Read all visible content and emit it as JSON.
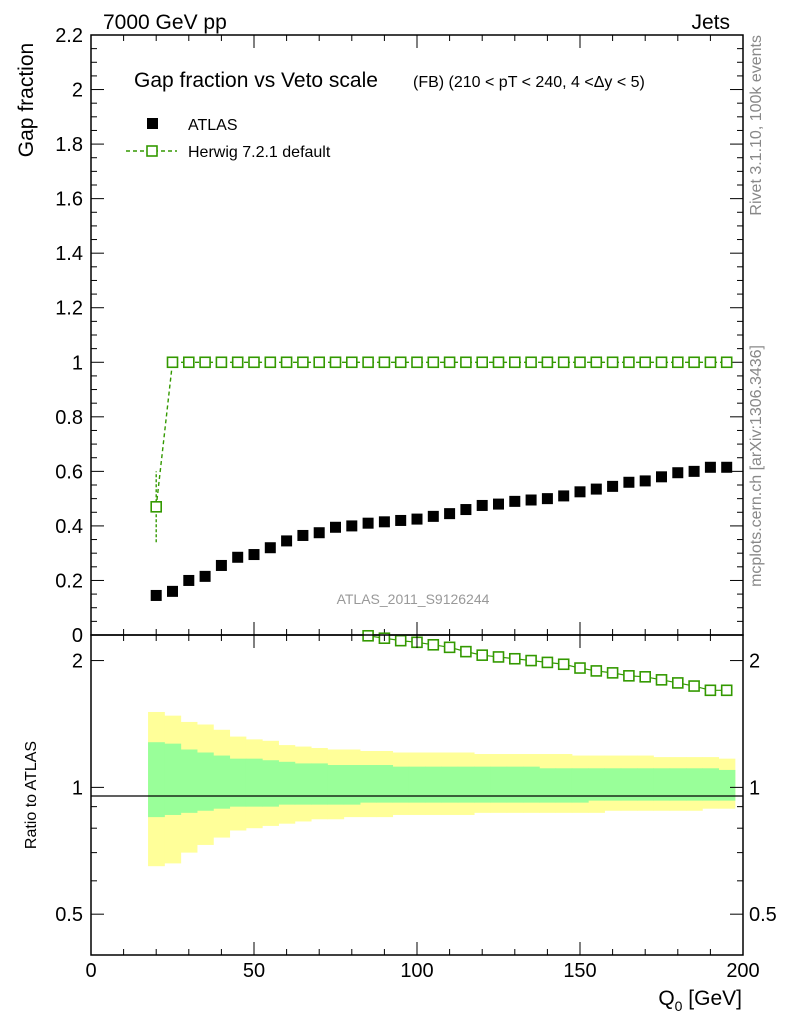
{
  "header": {
    "left": "7000 GeV pp",
    "right": "Jets"
  },
  "side": {
    "rivet": "Rivet 3.1.10,  100k events",
    "mcplots": "mcplots.cern.ch [arXiv:1306.3436]"
  },
  "chart_data": [
    {
      "type": "scatter",
      "title": "Gap fraction vs Veto scale",
      "subtitle": "(FB) (210 < pT < 240, 4 <Δy < 5)",
      "ylabel": "Gap fraction",
      "xlim": [
        0,
        200
      ],
      "ylim": [
        0,
        2.2
      ],
      "yticks": [
        "0",
        "0.2",
        "0.4",
        "0.6",
        "0.8",
        "1",
        "1.2",
        "1.4",
        "1.6",
        "1.8",
        "2",
        "2.2"
      ],
      "watermark": "ATLAS_2011_S9126244",
      "x": [
        20,
        25,
        30,
        35,
        40,
        45,
        50,
        55,
        60,
        65,
        70,
        75,
        80,
        85,
        90,
        95,
        100,
        105,
        110,
        115,
        120,
        125,
        130,
        135,
        140,
        145,
        150,
        155,
        160,
        165,
        170,
        175,
        180,
        185,
        190,
        195
      ],
      "series": [
        {
          "name": "ATLAS",
          "marker": "filled-square",
          "color": "#000000",
          "values": [
            0.145,
            0.16,
            0.2,
            0.215,
            0.255,
            0.285,
            0.295,
            0.32,
            0.345,
            0.365,
            0.375,
            0.395,
            0.4,
            0.41,
            0.415,
            0.42,
            0.425,
            0.435,
            0.445,
            0.46,
            0.475,
            0.48,
            0.49,
            0.495,
            0.5,
            0.51,
            0.525,
            0.535,
            0.545,
            0.56,
            0.565,
            0.58,
            0.595,
            0.6,
            0.615,
            0.615
          ]
        },
        {
          "name": "Herwig 7.2.1 default",
          "marker": "open-square",
          "line": "dashed",
          "color": "#339900",
          "values": [
            0.47,
            1,
            1,
            1,
            1,
            1,
            1,
            1,
            1,
            1,
            1,
            1,
            1,
            1,
            1,
            1,
            1,
            1,
            1,
            1,
            1,
            1,
            1,
            1,
            1,
            1,
            1,
            1,
            1,
            1,
            1,
            1,
            1,
            1,
            1,
            1
          ],
          "error_low": [
            0.34,
            null,
            null,
            null,
            null,
            null,
            null,
            null,
            null,
            null,
            null,
            null,
            null,
            null,
            null,
            null,
            null,
            null,
            null,
            null,
            null,
            null,
            null,
            null,
            null,
            null,
            null,
            null,
            null,
            null,
            null,
            null,
            null,
            null,
            null,
            null
          ],
          "error_high": [
            0.6,
            null,
            null,
            null,
            null,
            null,
            null,
            null,
            null,
            null,
            null,
            null,
            null,
            null,
            null,
            null,
            null,
            null,
            null,
            null,
            null,
            null,
            null,
            null,
            null,
            null,
            null,
            null,
            null,
            null,
            null,
            null,
            null,
            null,
            null,
            null
          ]
        }
      ]
    },
    {
      "type": "scatter",
      "title": "",
      "ylabel": "Ratio to ATLAS",
      "xlabel": "Q",
      "xlabel_sub": "0",
      "xlabel_unit": " [GeV]",
      "xlim": [
        0,
        200
      ],
      "ylim": [
        0.4,
        2.3
      ],
      "yscale": "log",
      "xticks": [
        "0",
        "50",
        "100",
        "150",
        "200"
      ],
      "yticks": [
        "0.5",
        "1",
        "2"
      ],
      "bands": {
        "edges": [
          17.5,
          22.5,
          27.5,
          32.5,
          37.5,
          42.5,
          47.5,
          52.5,
          57.5,
          62.5,
          67.5,
          72.5,
          77.5,
          82.5,
          87.5,
          92.5,
          97.5,
          102.5,
          107.5,
          112.5,
          117.5,
          122.5,
          127.5,
          132.5,
          137.5,
          142.5,
          147.5,
          152.5,
          157.5,
          162.5,
          167.5,
          172.5,
          177.5,
          182.5,
          187.5,
          192.5,
          197.5
        ],
        "yellow_high": [
          1.51,
          1.48,
          1.43,
          1.41,
          1.37,
          1.32,
          1.3,
          1.29,
          1.26,
          1.25,
          1.24,
          1.23,
          1.23,
          1.22,
          1.22,
          1.21,
          1.21,
          1.21,
          1.21,
          1.21,
          1.2,
          1.2,
          1.2,
          1.2,
          1.2,
          1.2,
          1.19,
          1.19,
          1.19,
          1.19,
          1.19,
          1.18,
          1.18,
          1.18,
          1.18,
          1.17
        ],
        "yellow_low": [
          0.65,
          0.66,
          0.7,
          0.73,
          0.76,
          0.79,
          0.8,
          0.81,
          0.82,
          0.83,
          0.84,
          0.84,
          0.85,
          0.85,
          0.85,
          0.86,
          0.86,
          0.86,
          0.86,
          0.86,
          0.87,
          0.87,
          0.87,
          0.87,
          0.87,
          0.87,
          0.87,
          0.87,
          0.88,
          0.88,
          0.88,
          0.88,
          0.88,
          0.88,
          0.89,
          0.89
        ],
        "green_high": [
          1.28,
          1.27,
          1.23,
          1.21,
          1.19,
          1.17,
          1.17,
          1.16,
          1.15,
          1.14,
          1.14,
          1.13,
          1.13,
          1.13,
          1.13,
          1.12,
          1.12,
          1.12,
          1.12,
          1.12,
          1.12,
          1.12,
          1.12,
          1.12,
          1.11,
          1.11,
          1.11,
          1.11,
          1.11,
          1.11,
          1.11,
          1.11,
          1.11,
          1.11,
          1.11,
          1.1
        ],
        "green_low": [
          0.85,
          0.86,
          0.87,
          0.88,
          0.89,
          0.9,
          0.9,
          0.9,
          0.91,
          0.91,
          0.91,
          0.91,
          0.91,
          0.92,
          0.92,
          0.92,
          0.92,
          0.92,
          0.92,
          0.92,
          0.92,
          0.92,
          0.92,
          0.92,
          0.92,
          0.92,
          0.92,
          0.93,
          0.93,
          0.93,
          0.93,
          0.93,
          0.93,
          0.93,
          0.93,
          0.93
        ]
      },
      "reference_line": 1,
      "series": [
        {
          "name": "Herwig 7.2.1 default / ATLAS",
          "marker": "open-square",
          "color": "#339900",
          "x": [
            85,
            90,
            95,
            100,
            105,
            110,
            115,
            120,
            125,
            130,
            135,
            140,
            145,
            150,
            155,
            160,
            165,
            170,
            175,
            180,
            185,
            190,
            195
          ],
          "values": [
            2.29,
            2.26,
            2.23,
            2.21,
            2.18,
            2.15,
            2.1,
            2.06,
            2.04,
            2.02,
            2.0,
            1.98,
            1.96,
            1.92,
            1.89,
            1.87,
            1.84,
            1.83,
            1.8,
            1.77,
            1.74,
            1.7,
            1.7
          ]
        }
      ]
    }
  ]
}
